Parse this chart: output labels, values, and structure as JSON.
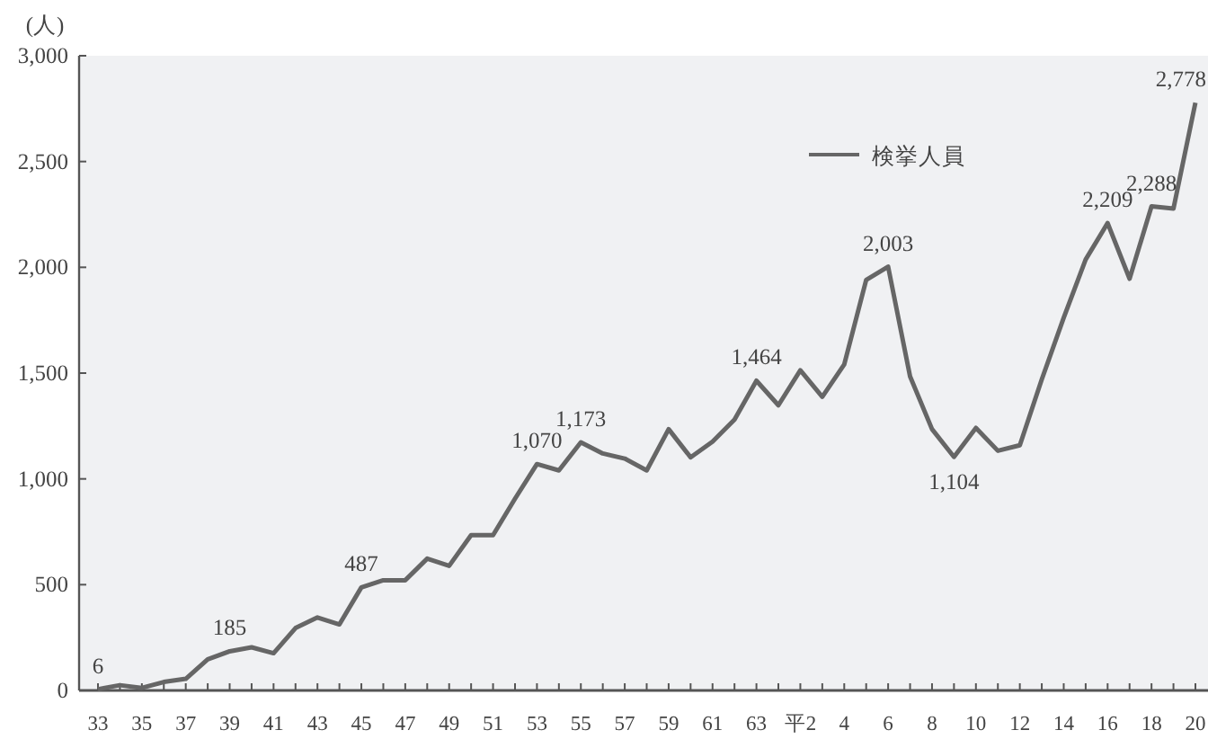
{
  "chart_data": {
    "type": "line",
    "ylabel": "(人)",
    "categories": [
      "33",
      null,
      "35",
      null,
      "37",
      null,
      "39",
      null,
      "41",
      null,
      "43",
      null,
      "45",
      null,
      "47",
      null,
      "49",
      null,
      "51",
      null,
      "53",
      null,
      "55",
      null,
      "57",
      null,
      "59",
      null,
      "61",
      null,
      "63",
      null,
      "平2",
      null,
      "4",
      null,
      "6",
      null,
      "8",
      null,
      "10",
      null,
      "12",
      null,
      "14",
      null,
      "16",
      null,
      "18",
      null,
      "20"
    ],
    "series": [
      {
        "name": "検挙人員",
        "color": "#666666",
        "values": [
          6,
          25,
          12,
          40,
          55,
          147,
          185,
          204,
          176,
          295,
          345,
          312,
          487,
          521,
          521,
          623,
          589,
          734,
          734,
          906,
          1070,
          1040,
          1173,
          1120,
          1096,
          1040,
          1235,
          1102,
          1176,
          1280,
          1464,
          1348,
          1513,
          1388,
          1541,
          1940,
          2003,
          1484,
          1235,
          1104,
          1241,
          1133,
          1159,
          1470,
          1762,
          2037,
          2209,
          1946,
          2288,
          2278,
          2778
        ],
        "value_labels": [
          "6",
          null,
          null,
          null,
          null,
          null,
          "185",
          null,
          null,
          null,
          null,
          null,
          "487",
          null,
          null,
          null,
          null,
          null,
          null,
          null,
          "1,070",
          null,
          "1,173",
          null,
          null,
          null,
          null,
          null,
          null,
          null,
          "1,464",
          null,
          null,
          null,
          null,
          null,
          "2,003",
          null,
          null,
          "1,104",
          null,
          null,
          null,
          null,
          null,
          null,
          "2,209",
          null,
          "2,288",
          null,
          "2,778"
        ]
      }
    ],
    "ylim": [
      0,
      3000
    ],
    "yticks": [
      0,
      {
        "value": 500,
        "label": "500"
      },
      {
        "value": 1000,
        "label": "1,000"
      },
      {
        "value": 1500,
        "label": "1,500"
      },
      {
        "value": 2000,
        "label": "2,000"
      },
      {
        "value": 2500,
        "label": "2,500"
      },
      {
        "value": 3000,
        "label": "3,000"
      }
    ],
    "grid": false,
    "legend": "top",
    "marker": "none",
    "line_style": "solid"
  }
}
